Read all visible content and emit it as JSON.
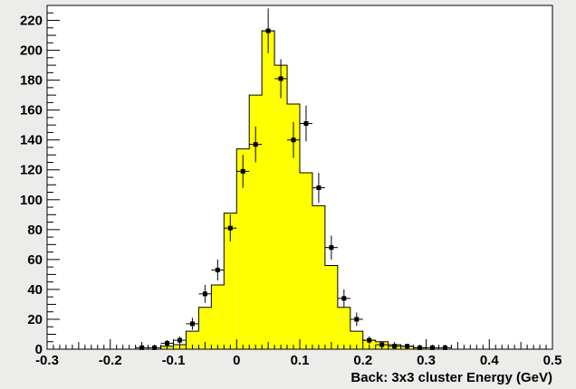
{
  "chart_data": {
    "type": "bar",
    "title": "",
    "xlabel": "Back: 3x3 cluster Energy (GeV)",
    "ylabel": "",
    "xlim": [
      -0.3,
      0.5
    ],
    "ylim": [
      0,
      230
    ],
    "grid": false,
    "x_ticks": [
      -0.3,
      -0.2,
      -0.1,
      0,
      0.1,
      0.2,
      0.3,
      0.4,
      0.5
    ],
    "x_tick_labels": [
      "-0.3",
      "-0.2",
      "-0.1",
      "0",
      "0.1",
      "0.2",
      "0.3",
      "0.4",
      "0.5"
    ],
    "y_ticks": [
      0,
      20,
      40,
      60,
      80,
      100,
      120,
      140,
      160,
      180,
      200,
      220
    ],
    "y_tick_labels": [
      "0",
      "20",
      "40",
      "60",
      "80",
      "100",
      "120",
      "140",
      "160",
      "180",
      "200",
      "220"
    ],
    "colors": {
      "fill": "#ffff00",
      "outline": "#000000",
      "background": "#ececea",
      "frame_bg": "#ffffff"
    },
    "histogram": {
      "name": "",
      "bin_width": 0.02,
      "bins": [
        {
          "lo": -0.12,
          "value": 2
        },
        {
          "lo": -0.1,
          "value": 3
        },
        {
          "lo": -0.08,
          "value": 12
        },
        {
          "lo": -0.06,
          "value": 28
        },
        {
          "lo": -0.04,
          "value": 43
        },
        {
          "lo": -0.02,
          "value": 91
        },
        {
          "lo": 0.0,
          "value": 134
        },
        {
          "lo": 0.02,
          "value": 170
        },
        {
          "lo": 0.04,
          "value": 213
        },
        {
          "lo": 0.06,
          "value": 190
        },
        {
          "lo": 0.08,
          "value": 164
        },
        {
          "lo": 0.1,
          "value": 118
        },
        {
          "lo": 0.12,
          "value": 96
        },
        {
          "lo": 0.14,
          "value": 56
        },
        {
          "lo": 0.16,
          "value": 28
        },
        {
          "lo": 0.18,
          "value": 12
        },
        {
          "lo": 0.2,
          "value": 6
        },
        {
          "lo": 0.22,
          "value": 5
        },
        {
          "lo": 0.24,
          "value": 3
        },
        {
          "lo": 0.26,
          "value": 2
        },
        {
          "lo": 0.28,
          "value": 1
        }
      ]
    },
    "points": {
      "name": "",
      "x_err": 0.01,
      "data": [
        {
          "x": -0.15,
          "y": 1,
          "err": 1
        },
        {
          "x": -0.13,
          "y": 1,
          "err": 1
        },
        {
          "x": -0.11,
          "y": 4,
          "err": 2
        },
        {
          "x": -0.09,
          "y": 6,
          "err": 2.5
        },
        {
          "x": -0.07,
          "y": 17,
          "err": 4
        },
        {
          "x": -0.05,
          "y": 37,
          "err": 6
        },
        {
          "x": -0.03,
          "y": 53,
          "err": 7
        },
        {
          "x": -0.01,
          "y": 81,
          "err": 9
        },
        {
          "x": 0.01,
          "y": 119,
          "err": 11
        },
        {
          "x": 0.03,
          "y": 137,
          "err": 12
        },
        {
          "x": 0.05,
          "y": 213,
          "err": 15
        },
        {
          "x": 0.07,
          "y": 181,
          "err": 13
        },
        {
          "x": 0.09,
          "y": 140,
          "err": 12
        },
        {
          "x": 0.11,
          "y": 151,
          "err": 12
        },
        {
          "x": 0.13,
          "y": 108,
          "err": 10
        },
        {
          "x": 0.15,
          "y": 68,
          "err": 8
        },
        {
          "x": 0.17,
          "y": 34,
          "err": 6
        },
        {
          "x": 0.19,
          "y": 20,
          "err": 4.5
        },
        {
          "x": 0.21,
          "y": 6,
          "err": 2.5
        },
        {
          "x": 0.23,
          "y": 3,
          "err": 2
        },
        {
          "x": 0.25,
          "y": 2,
          "err": 1.4
        },
        {
          "x": 0.27,
          "y": 2,
          "err": 1.4
        },
        {
          "x": 0.29,
          "y": 1,
          "err": 1
        },
        {
          "x": 0.31,
          "y": 1,
          "err": 1
        },
        {
          "x": 0.33,
          "y": 1,
          "err": 1
        }
      ]
    }
  }
}
